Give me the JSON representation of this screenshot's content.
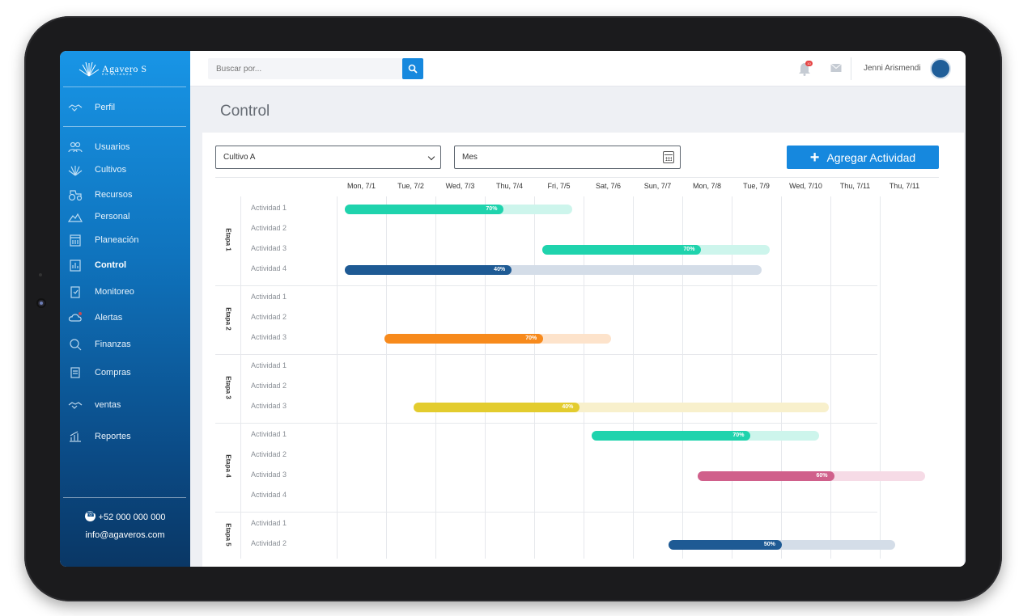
{
  "brand": {
    "name": "Agavero S",
    "tagline": "EN ALIANZA"
  },
  "sidebar": {
    "profile": {
      "label": "Perfil",
      "icon": "handshake-icon"
    },
    "items": [
      {
        "label": "Usuarios",
        "icon": "users-icon"
      },
      {
        "label": "Cultivos",
        "icon": "agave-icon"
      },
      {
        "label": "Recursos",
        "icon": "tractor-icon"
      },
      {
        "label": "Personal",
        "icon": "farmer-icon"
      },
      {
        "label": "Planeación",
        "icon": "calendar-icon"
      },
      {
        "label": "Control",
        "icon": "chart-icon",
        "active": true
      },
      {
        "label": "Monitoreo",
        "icon": "clipboard-icon"
      },
      {
        "label": "Alertas",
        "icon": "alert-cloud-icon"
      },
      {
        "label": "Finanzas",
        "icon": "finance-search-icon"
      },
      {
        "label": "Compras",
        "icon": "receipt-icon"
      },
      {
        "label": "ventas",
        "icon": "deal-icon"
      },
      {
        "label": "Reportes",
        "icon": "report-icon"
      }
    ],
    "phone": "+52 000 000 000",
    "email": "info@agaveros.com"
  },
  "header": {
    "search_placeholder": "Buscar por...",
    "notifications_count": "10",
    "user_name": "Jenni Arismendi"
  },
  "page": {
    "title": "Control"
  },
  "controls": {
    "crop_select": "Cultivo A",
    "period": "Mes",
    "add_button": "Agregar Actividad"
  },
  "gantt": {
    "days": [
      "Mon, 7/1",
      "Tue, 7/2",
      "Wed, 7/3",
      "Thu, 7/4",
      "Fri, 7/5",
      "Sat, 7/6",
      "Sun, 7/7",
      "Mon, 7/8",
      "Tue, 7/9",
      "Wed, 7/10",
      "Thu, 7/11",
      "Thu, 7/11"
    ],
    "stages": [
      {
        "name": "Etapa 1",
        "activities": [
          "Actividad 1",
          "Actividad 2",
          "Actividad 3",
          "Actividad 4"
        ]
      },
      {
        "name": "Etapa 2",
        "activities": [
          "Actividad 1",
          "Actividad 2",
          "Actividad 3"
        ]
      },
      {
        "name": "Etapa 3",
        "activities": [
          "Actividad 1",
          "Actividad 2",
          "Actividad 3"
        ]
      },
      {
        "name": "Etapa 4",
        "activities": [
          "Actividad 1",
          "Actividad 2",
          "Actividad 3",
          "Actividad 4"
        ]
      },
      {
        "name": "Etapa 5",
        "activities": [
          "Actividad 1",
          "Actividad 2"
        ]
      }
    ],
    "tasks": [
      {
        "stage": 0,
        "activity": 0,
        "start": 0.0,
        "end": 4.6,
        "progress": 0.7,
        "label": "70%",
        "color": "#1fd3ad",
        "track": "#cdf5ec"
      },
      {
        "stage": 0,
        "activity": 2,
        "start": 4.0,
        "end": 8.6,
        "progress": 0.7,
        "label": "70%",
        "color": "#1fd3ad",
        "track": "#cdf5ec"
      },
      {
        "stage": 0,
        "activity": 3,
        "start": 0.0,
        "end": 8.45,
        "progress": 0.4,
        "label": "40%",
        "color": "#1e5a94",
        "track": "#d4dde8"
      },
      {
        "stage": 1,
        "activity": 2,
        "start": 0.8,
        "end": 5.4,
        "progress": 0.7,
        "label": "70%",
        "color": "#f78a1c",
        "track": "#fde3cb"
      },
      {
        "stage": 2,
        "activity": 2,
        "start": 1.4,
        "end": 9.8,
        "progress": 0.4,
        "label": "40%",
        "color": "#e3cc2e",
        "track": "#f8f0cc"
      },
      {
        "stage": 3,
        "activity": 0,
        "start": 5.0,
        "end": 9.6,
        "progress": 0.7,
        "label": "70%",
        "color": "#1fd3ad",
        "track": "#cdf5ec"
      },
      {
        "stage": 3,
        "activity": 2,
        "start": 7.15,
        "end": 11.75,
        "progress": 0.6,
        "label": "60%",
        "color": "#d0608b",
        "track": "#f6dbe6"
      },
      {
        "stage": 4,
        "activity": 1,
        "start": 6.55,
        "end": 11.15,
        "progress": 0.5,
        "label": "50%",
        "color": "#1e5a94",
        "track": "#d4dde8"
      }
    ]
  },
  "colors": {
    "accent": "#1688de",
    "sidebar_top": "#1895e6",
    "sidebar_bottom": "#0a3765"
  }
}
